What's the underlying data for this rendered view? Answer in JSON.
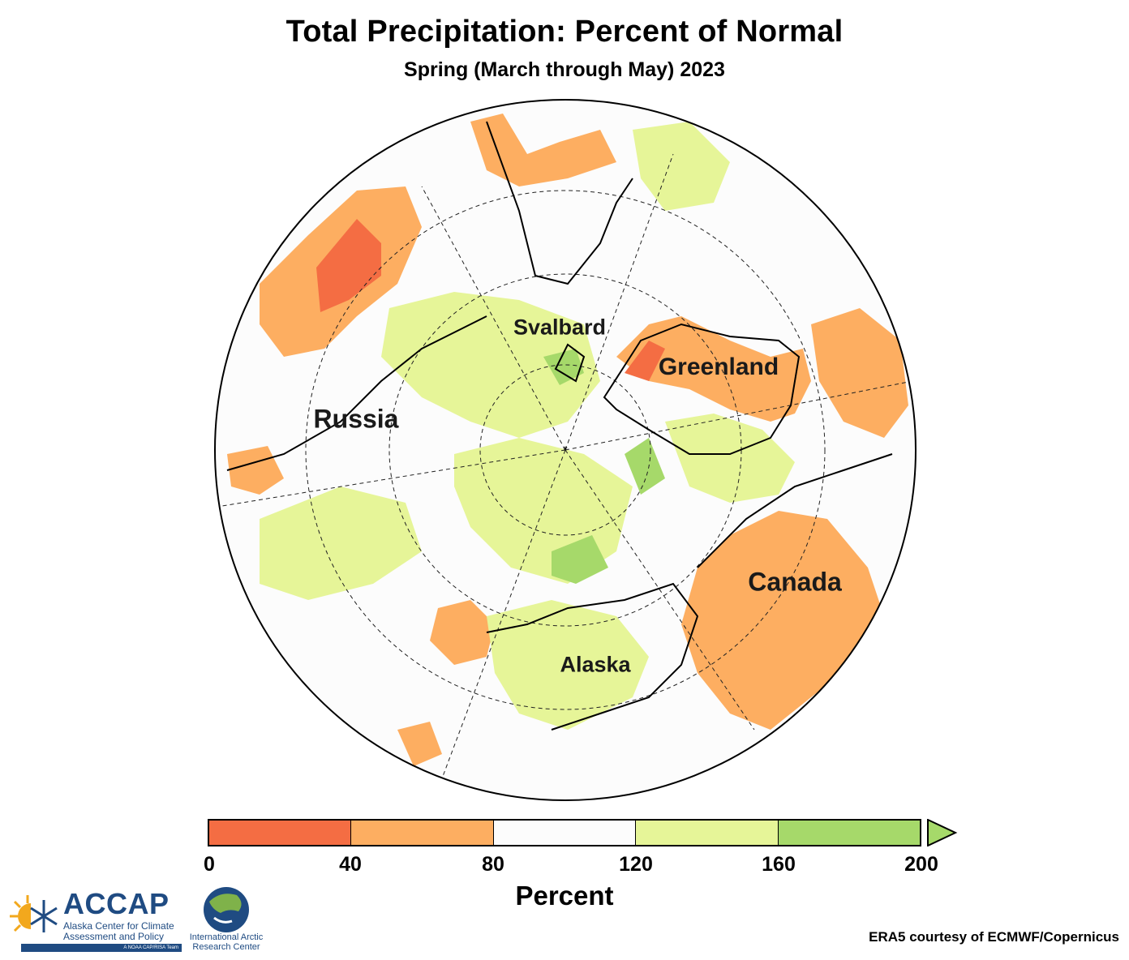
{
  "title": "Total Precipitation: Percent of Normal",
  "subtitle": "Spring (March through May) 2023",
  "regions": [
    {
      "key": "svalbard",
      "label": "Svalbard"
    },
    {
      "key": "greenland",
      "label": "Greenland"
    },
    {
      "key": "russia",
      "label": "Russia"
    },
    {
      "key": "canada",
      "label": "Canada"
    },
    {
      "key": "alaska",
      "label": "Alaska"
    }
  ],
  "legend": {
    "label": "Percent",
    "ticks": [
      "0",
      "40",
      "80",
      "120",
      "160",
      "200"
    ],
    "bins": [
      {
        "range": "0-40",
        "color": "#f46d43"
      },
      {
        "range": "40-80",
        "color": "#fdae61"
      },
      {
        "range": "80-120",
        "color": "#fcfcfc"
      },
      {
        "range": "120-160",
        "color": "#e6f598"
      },
      {
        "range": ">160",
        "color": "#a6d96a"
      }
    ],
    "extend_color": "#a6d96a"
  },
  "credit": "ERA5 courtesy of ECMWF/Copernicus",
  "logos": {
    "accap_name": "ACCAP",
    "accap_sub": "Alaska Center for Climate Assessment and Policy",
    "accap_tag": "A NOAA CAP/RISA Team",
    "iarc_name": "International Arctic Research Center"
  }
}
